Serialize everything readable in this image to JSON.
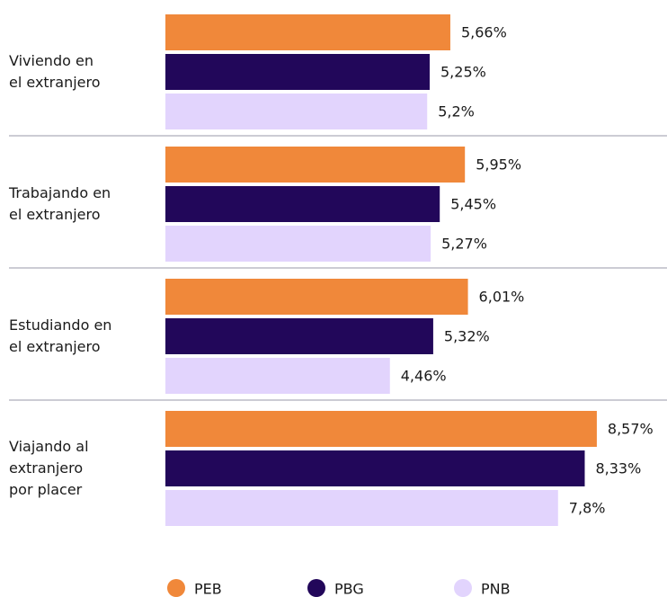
{
  "chart_data": {
    "type": "bar",
    "orientation": "horizontal",
    "categories": [
      "Viviendo en\nel extranjero",
      "Trabajando en\nel extranjero",
      "Estudiando en\nel extranjero",
      "Viajando al\nextranjero\npor placer"
    ],
    "series": [
      {
        "name": "PEB",
        "color": "#f0883a",
        "values": [
          5.66,
          5.95,
          6.01,
          8.57
        ],
        "value_labels": [
          "5,66%",
          "5,95%",
          "6,01%",
          "8,57%"
        ]
      },
      {
        "name": "PBG",
        "color": "#22075a",
        "values": [
          5.25,
          5.45,
          5.32,
          8.33
        ],
        "value_labels": [
          "5,25%",
          "5,45%",
          "5,32%",
          "8,33%"
        ]
      },
      {
        "name": "PNB",
        "color": "#e2d4fd",
        "values": [
          5.2,
          5.27,
          4.46,
          7.8
        ],
        "value_labels": [
          "5,2%",
          "5,27%",
          "4,46%",
          "7,8%"
        ]
      }
    ],
    "legend": "bottom"
  }
}
